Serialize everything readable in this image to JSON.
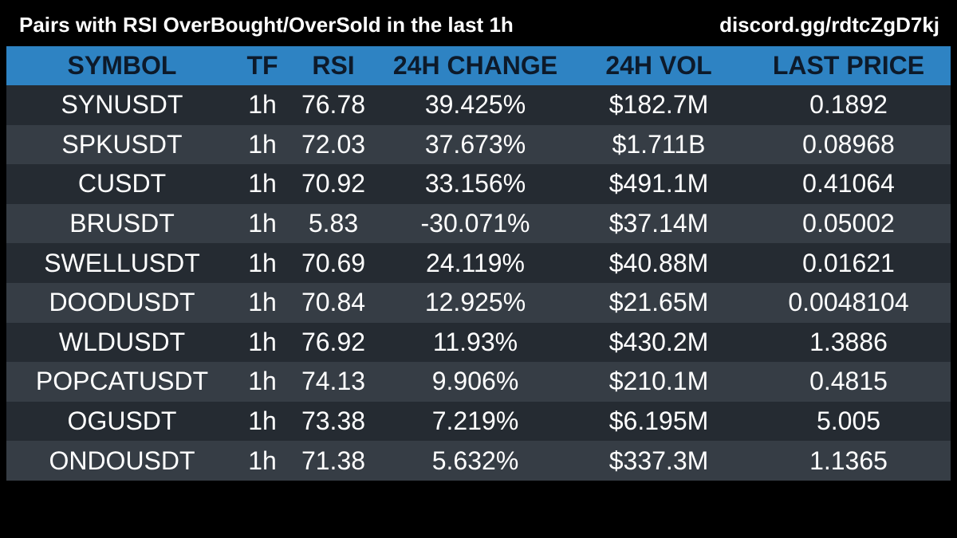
{
  "header": {
    "title": "Pairs with RSI OverBought/OverSold in the last 1h",
    "link": "discord.gg/rdtcZgD7kj"
  },
  "colors": {
    "background": "#000000",
    "header_row": "#2e83c3",
    "row_dark": "#252b32",
    "row_light": "#363d45",
    "text": "#ffffff",
    "header_text": "#0d1a2a"
  },
  "table": {
    "columns": [
      "SYMBOL",
      "TF",
      "RSI",
      "24H CHANGE",
      "24H VOL",
      "LAST PRICE"
    ],
    "rows": [
      {
        "symbol": "SYNUSDT",
        "tf": "1h",
        "rsi": "76.78",
        "change": "39.425%",
        "vol": "$182.7M",
        "price": "0.1892"
      },
      {
        "symbol": "SPKUSDT",
        "tf": "1h",
        "rsi": "72.03",
        "change": "37.673%",
        "vol": "$1.711B",
        "price": "0.08968"
      },
      {
        "symbol": "CUSDT",
        "tf": "1h",
        "rsi": "70.92",
        "change": "33.156%",
        "vol": "$491.1M",
        "price": "0.41064"
      },
      {
        "symbol": "BRUSDT",
        "tf": "1h",
        "rsi": "5.83",
        "change": "-30.071%",
        "vol": "$37.14M",
        "price": "0.05002"
      },
      {
        "symbol": "SWELLUSDT",
        "tf": "1h",
        "rsi": "70.69",
        "change": "24.119%",
        "vol": "$40.88M",
        "price": "0.01621"
      },
      {
        "symbol": "DOODUSDT",
        "tf": "1h",
        "rsi": "70.84",
        "change": "12.925%",
        "vol": "$21.65M",
        "price": "0.0048104"
      },
      {
        "symbol": "WLDUSDT",
        "tf": "1h",
        "rsi": "76.92",
        "change": "11.93%",
        "vol": "$430.2M",
        "price": "1.3886"
      },
      {
        "symbol": "POPCATUSDT",
        "tf": "1h",
        "rsi": "74.13",
        "change": "9.906%",
        "vol": "$210.1M",
        "price": "0.4815"
      },
      {
        "symbol": "OGUSDT",
        "tf": "1h",
        "rsi": "73.38",
        "change": "7.219%",
        "vol": "$6.195M",
        "price": "5.005"
      },
      {
        "symbol": "ONDOUSDT",
        "tf": "1h",
        "rsi": "71.38",
        "change": "5.632%",
        "vol": "$337.3M",
        "price": "1.1365"
      }
    ]
  }
}
